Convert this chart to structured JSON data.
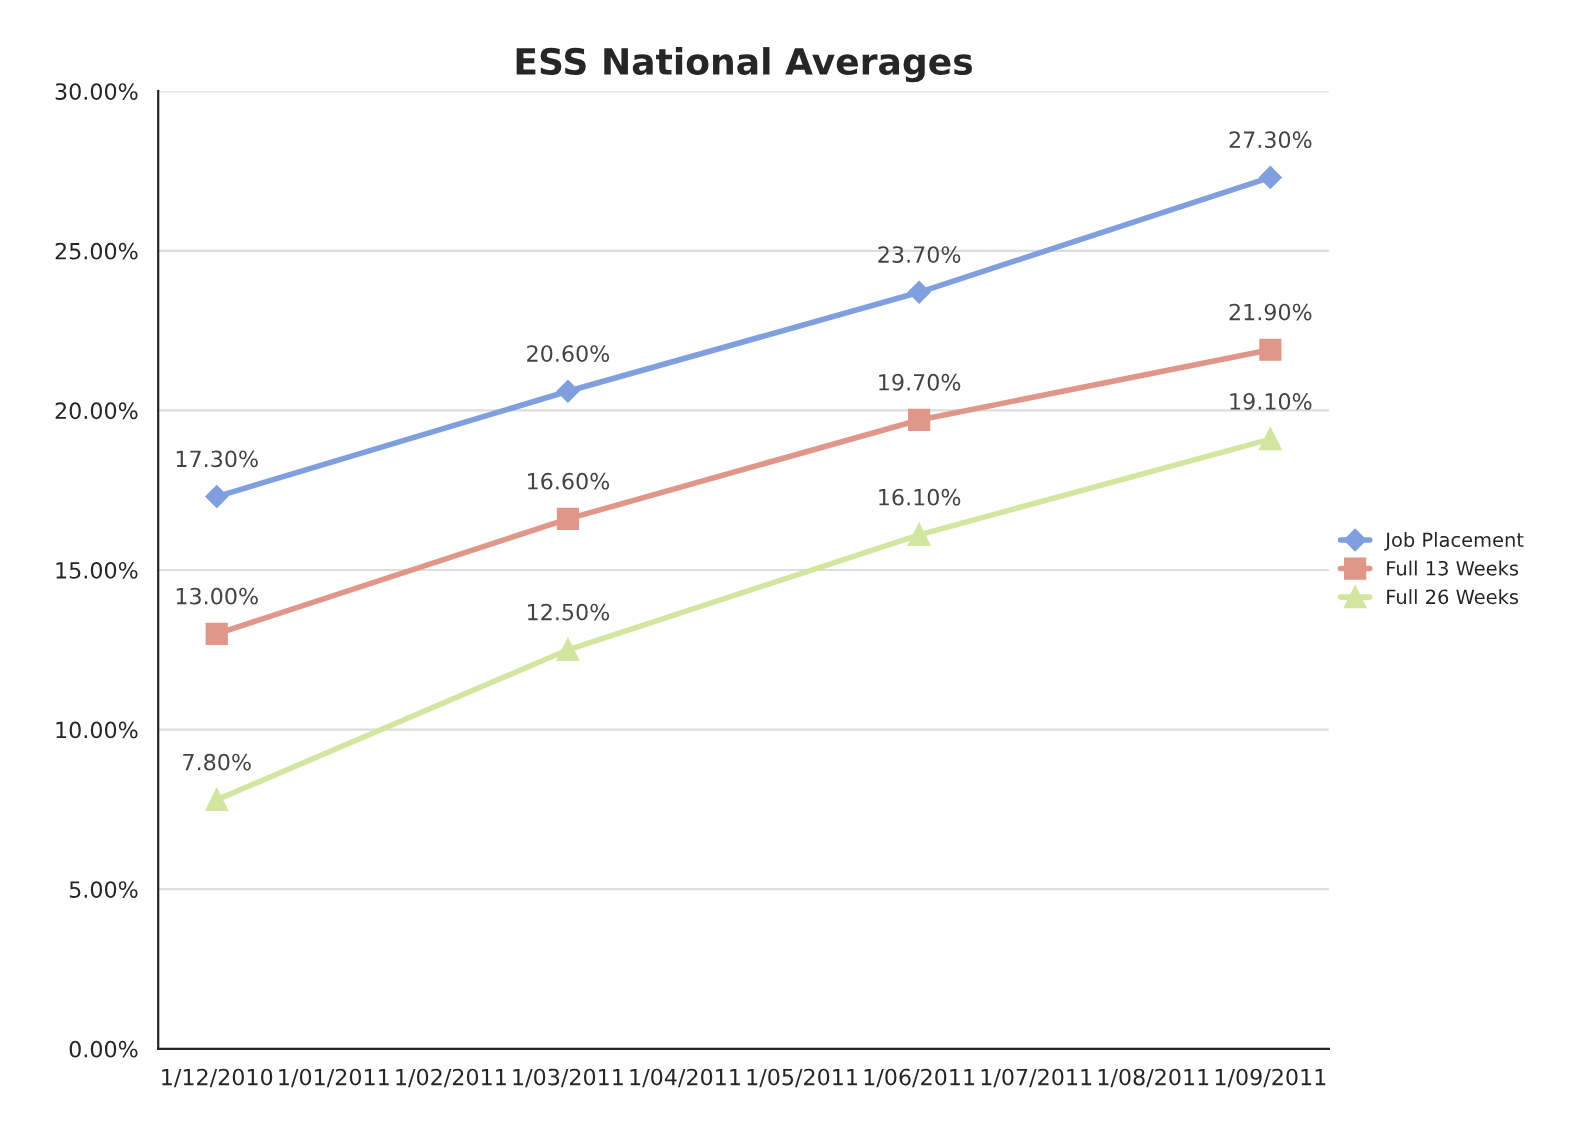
{
  "chart_data": {
    "type": "line",
    "title": "ESS National Averages",
    "categories": [
      "1/12/2010",
      "1/01/2011",
      "1/02/2011",
      "1/03/2011",
      "1/04/2011",
      "1/05/2011",
      "1/06/2011",
      "1/07/2011",
      "1/08/2011",
      "1/09/2011"
    ],
    "series": [
      {
        "name": "Job Placement",
        "color": "#7f9fdf",
        "marker": "diamond",
        "values": [
          17.3,
          null,
          null,
          20.6,
          null,
          null,
          23.7,
          null,
          null,
          27.3
        ],
        "value_labels": [
          "17.30%",
          null,
          null,
          "20.60%",
          null,
          null,
          "23.70%",
          null,
          null,
          "27.30%"
        ]
      },
      {
        "name": "Full 13 Weeks",
        "color": "#e0978a",
        "marker": "square",
        "values": [
          13.0,
          null,
          null,
          16.6,
          null,
          null,
          19.7,
          null,
          null,
          21.9
        ],
        "value_labels": [
          "13.00%",
          null,
          null,
          "16.60%",
          null,
          null,
          "19.70%",
          null,
          null,
          "21.90%"
        ]
      },
      {
        "name": "Full 26 Weeks",
        "color": "#d2e6a0",
        "marker": "triangle",
        "values": [
          7.8,
          null,
          null,
          12.5,
          null,
          null,
          16.1,
          null,
          null,
          19.1
        ],
        "value_labels": [
          "7.80%",
          null,
          null,
          "12.50%",
          null,
          null,
          "16.10%",
          null,
          null,
          "19.10%"
        ]
      }
    ],
    "ylim": [
      0,
      30
    ],
    "yticks": [
      {
        "value": 0,
        "label": "0.00%"
      },
      {
        "value": 5,
        "label": "5.00%"
      },
      {
        "value": 10,
        "label": "10.00%"
      },
      {
        "value": 15,
        "label": "15.00%"
      },
      {
        "value": 20,
        "label": "20.00%"
      },
      {
        "value": 25,
        "label": "25.00%"
      },
      {
        "value": 30,
        "label": "30.00%"
      }
    ],
    "grid": "y",
    "legend": "right",
    "line_style": "solid"
  }
}
